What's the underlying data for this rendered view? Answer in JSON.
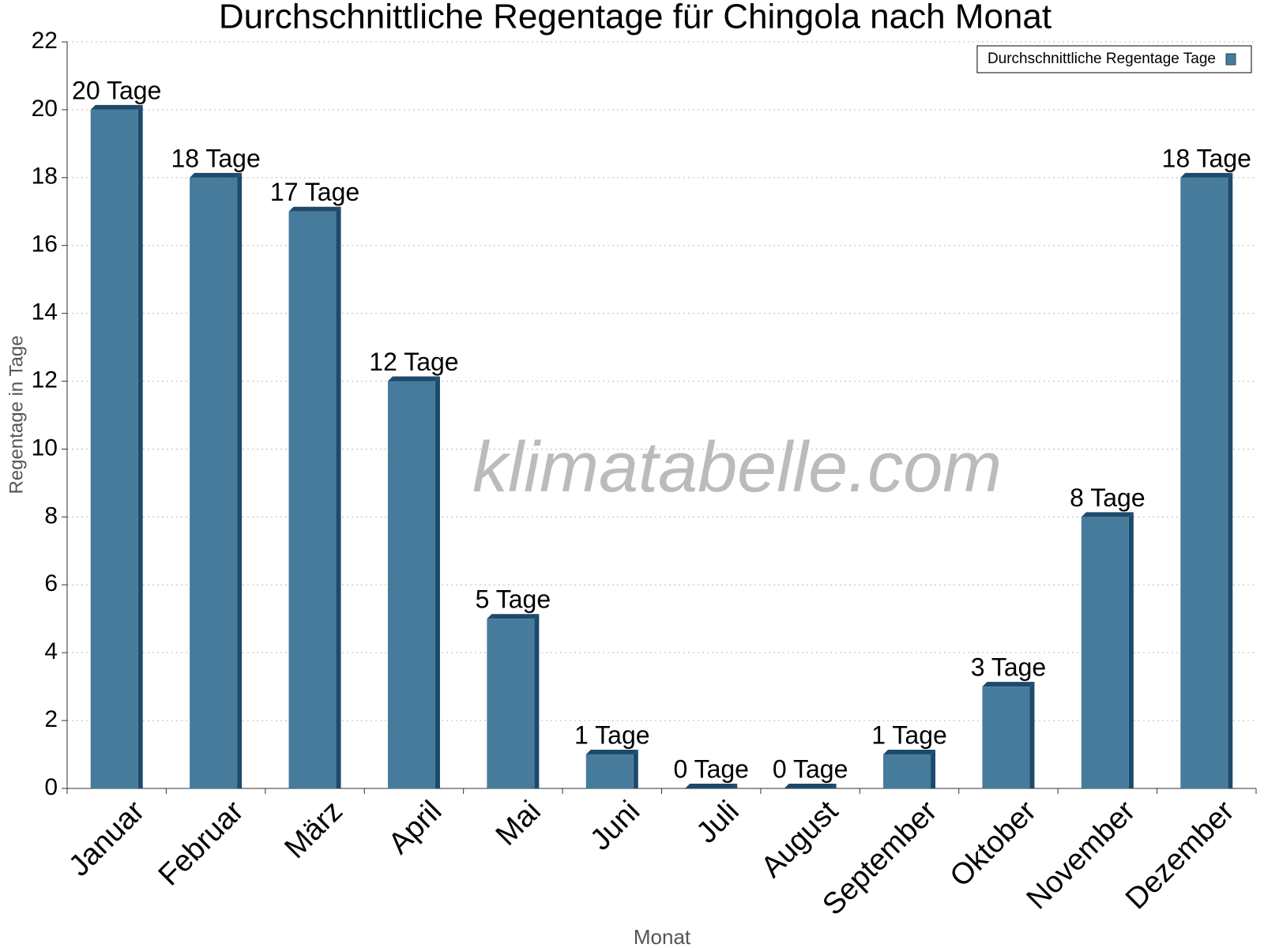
{
  "chart_data": {
    "type": "bar",
    "title": "Durchschnittliche Regentage für Chingola nach Monat",
    "x_label": "Monat",
    "y_label": "Regentage in Tage",
    "watermark": "klimatabelle.com",
    "legend": "top-right",
    "grid": true,
    "categories": [
      "Januar",
      "Februar",
      "März",
      "April",
      "Mai",
      "Juni",
      "Juli",
      "August",
      "September",
      "Oktober",
      "November",
      "Dezember"
    ],
    "series": [
      {
        "name": "Durchschnittliche Regentage Tage",
        "color": "#467b9c",
        "values": [
          20,
          18,
          17,
          12,
          5,
          1,
          0,
          0,
          1,
          3,
          8,
          18
        ],
        "value_labels": [
          "20 Tage",
          "18 Tage",
          "17 Tage",
          "12 Tage",
          "5 Tage",
          "1 Tage",
          "0 Tage",
          "0 Tage",
          "1 Tage",
          "3 Tage",
          "8 Tage",
          "18 Tage"
        ]
      }
    ],
    "ylim": [
      0,
      22
    ],
    "yticks": [
      0,
      2,
      4,
      6,
      8,
      10,
      12,
      14,
      16,
      18,
      20,
      22
    ]
  }
}
